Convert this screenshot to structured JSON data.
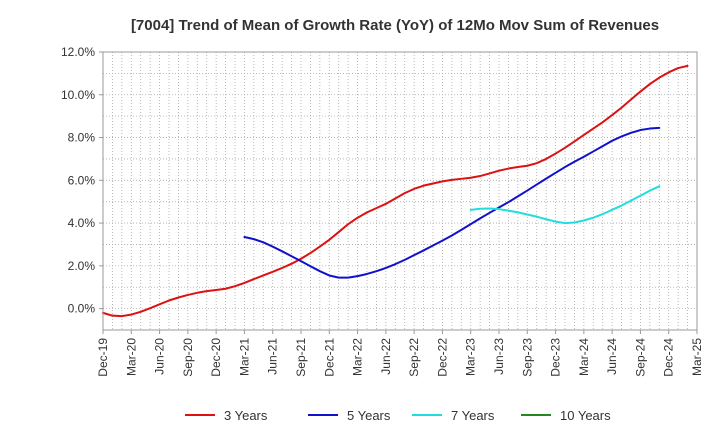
{
  "chart_data": {
    "type": "line",
    "title": "[7004]  Trend of Mean of Growth Rate (YoY) of 12Mo Mov Sum of Revenues",
    "xlabel": "",
    "ylabel": "",
    "ylim": [
      -1.0,
      12.0
    ],
    "yticks": [
      0,
      2,
      4,
      6,
      8,
      10,
      12
    ],
    "ytick_labels": [
      "0.0%",
      "2.0%",
      "4.0%",
      "6.0%",
      "8.0%",
      "10.0%",
      "12.0%"
    ],
    "x_start": "Dec-19",
    "x_months": 63,
    "xtick_labels": [
      "Dec-19",
      "Mar-20",
      "Jun-20",
      "Sep-20",
      "Dec-20",
      "Mar-21",
      "Jun-21",
      "Sep-21",
      "Dec-21",
      "Mar-22",
      "Jun-22",
      "Sep-22",
      "Dec-22",
      "Mar-23",
      "Jun-23",
      "Sep-23",
      "Dec-23",
      "Mar-24",
      "Jun-24",
      "Sep-24",
      "Dec-24",
      "Mar-25"
    ],
    "grid": true,
    "legend_position": "bottom",
    "series": [
      {
        "name": "3 Years",
        "color": "#dd1111",
        "start_month": 0,
        "values": [
          -0.2,
          -0.33,
          -0.35,
          -0.28,
          -0.15,
          0.02,
          0.2,
          0.38,
          0.52,
          0.64,
          0.74,
          0.82,
          0.87,
          0.93,
          1.05,
          1.2,
          1.38,
          1.55,
          1.72,
          1.9,
          2.1,
          2.33,
          2.6,
          2.9,
          3.22,
          3.58,
          3.95,
          4.25,
          4.5,
          4.7,
          4.9,
          5.15,
          5.4,
          5.6,
          5.75,
          5.85,
          5.95,
          6.02,
          6.07,
          6.12,
          6.2,
          6.32,
          6.45,
          6.55,
          6.62,
          6.68,
          6.8,
          7.0,
          7.25,
          7.52,
          7.82,
          8.12,
          8.42,
          8.72,
          9.05,
          9.4,
          9.78,
          10.15,
          10.5,
          10.8,
          11.05,
          11.25,
          11.35
        ]
      },
      {
        "name": "5 Years",
        "color": "#1111cc",
        "start_month": 15,
        "values": [
          3.35,
          3.25,
          3.1,
          2.9,
          2.68,
          2.45,
          2.22,
          1.98,
          1.75,
          1.55,
          1.45,
          1.45,
          1.52,
          1.62,
          1.75,
          1.9,
          2.08,
          2.28,
          2.5,
          2.72,
          2.95,
          3.18,
          3.42,
          3.68,
          3.95,
          4.22,
          4.48,
          4.73,
          4.98,
          5.25,
          5.52,
          5.8,
          6.08,
          6.35,
          6.62,
          6.87,
          7.1,
          7.35,
          7.6,
          7.85,
          8.05,
          8.22,
          8.35,
          8.42,
          8.45
        ]
      },
      {
        "name": "7 Years",
        "color": "#22dddd",
        "start_month": 39,
        "values": [
          4.62,
          4.67,
          4.68,
          4.65,
          4.58,
          4.5,
          4.4,
          4.3,
          4.18,
          4.07,
          4.0,
          4.03,
          4.12,
          4.25,
          4.42,
          4.62,
          4.82,
          5.05,
          5.28,
          5.52,
          5.72
        ]
      },
      {
        "name": "10 Years",
        "color": "#228822",
        "start_month": 0,
        "values": []
      }
    ]
  }
}
